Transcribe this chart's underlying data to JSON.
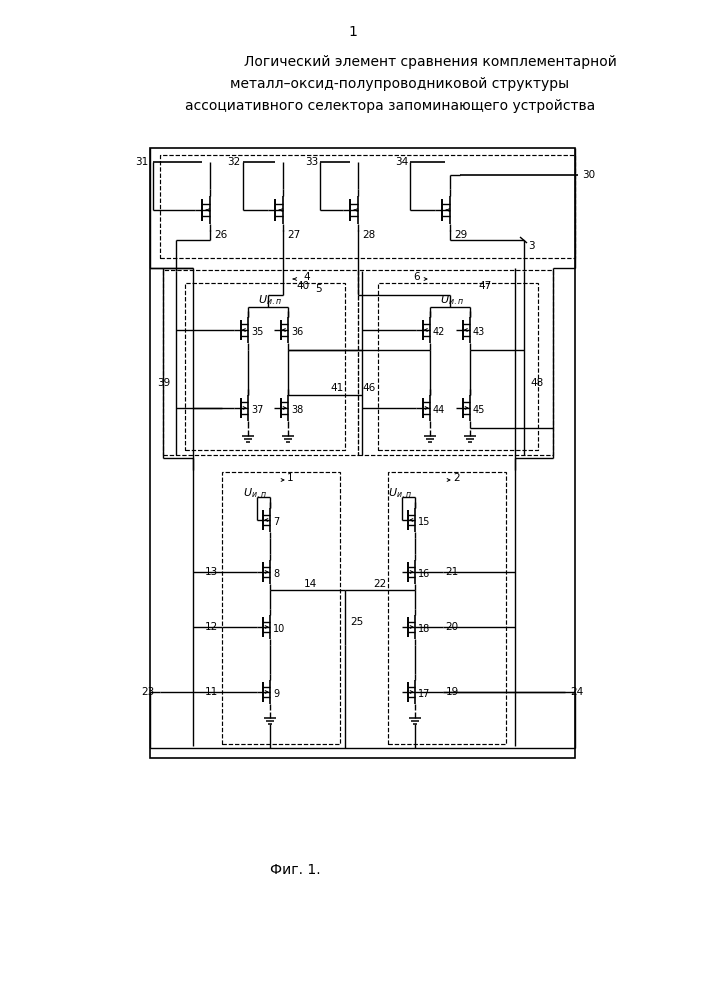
{
  "title_line1": "Логический элемент сравнения комплементарной",
  "title_line2": "металл–оксид-полупроводниковой структуры",
  "title_line3": "ассоциативного селектора запоминающего устройства",
  "page_number": "1",
  "fig_caption": "Фиг. 1.",
  "bg_color": "#ffffff"
}
